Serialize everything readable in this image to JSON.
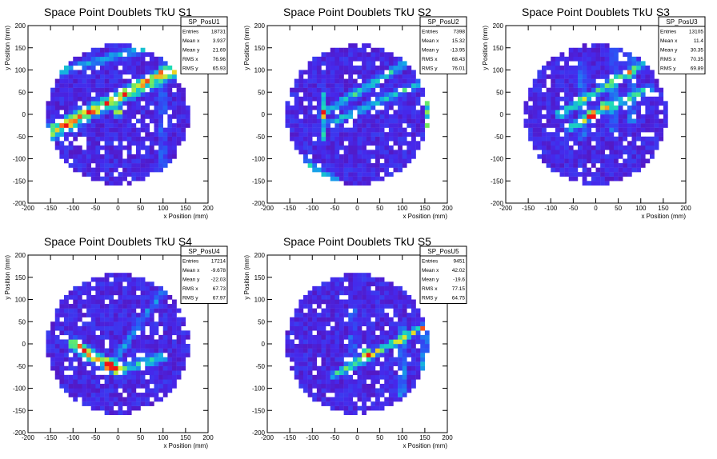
{
  "canvas": {
    "background": "#ffffff"
  },
  "chart_data": [
    {
      "type": "heatmap",
      "title": "Space Point Doublets TkU S1",
      "xlabel": "x Position (mm)",
      "ylabel": "y Position (mm)",
      "xlim": [
        -200,
        200
      ],
      "ylim": [
        -200,
        200
      ],
      "xticks": [
        -200,
        -150,
        -100,
        -50,
        0,
        50,
        100,
        150,
        200
      ],
      "yticks": [
        -200,
        -150,
        -100,
        -50,
        0,
        50,
        100,
        150,
        200
      ],
      "stats": {
        "name": "SP_PosU1",
        "rows": [
          {
            "label": "Entries",
            "value": "18731"
          },
          {
            "label": "Mean x",
            "value": "3.937"
          },
          {
            "label": "Mean y",
            "value": "21.69"
          },
          {
            "label": "RMS x",
            "value": "76.96"
          },
          {
            "label": "RMS y",
            "value": "65.93"
          }
        ]
      },
      "features": [
        {
          "kind": "line",
          "from": [
            -150,
            -40
          ],
          "to": [
            140,
            110
          ],
          "level": 0.95,
          "width": 22
        },
        {
          "kind": "line",
          "from": [
            -150,
            90
          ],
          "to": [
            60,
            150
          ],
          "level": 0.45,
          "width": 14
        },
        {
          "kind": "vline",
          "x": 100,
          "y0": -120,
          "y1": 140,
          "level": 0.35
        },
        {
          "kind": "spot",
          "at": [
            0,
            5
          ],
          "level": 1.0
        }
      ]
    },
    {
      "type": "heatmap",
      "title": "Space Point Doublets TkU S2",
      "xlabel": "x Position (mm)",
      "ylabel": "y Position (mm)",
      "xlim": [
        -200,
        200
      ],
      "ylim": [
        -200,
        200
      ],
      "xticks": [
        -200,
        -150,
        -100,
        -50,
        0,
        50,
        100,
        150,
        200
      ],
      "yticks": [
        -200,
        -150,
        -100,
        -50,
        0,
        50,
        100,
        150,
        200
      ],
      "stats": {
        "name": "SP_PosU2",
        "rows": [
          {
            "label": "Entries",
            "value": "7398"
          },
          {
            "label": "Mean x",
            "value": "15.32"
          },
          {
            "label": "Mean y",
            "value": "-13.95"
          },
          {
            "label": "RMS x",
            "value": "68.43"
          },
          {
            "label": "RMS y",
            "value": "76.01"
          }
        ]
      },
      "features": [
        {
          "kind": "line",
          "from": [
            -80,
            0
          ],
          "to": [
            100,
            110
          ],
          "level": 0.6,
          "width": 12
        },
        {
          "kind": "line",
          "from": [
            -60,
            -20
          ],
          "to": [
            160,
            80
          ],
          "level": 0.5,
          "width": 12
        },
        {
          "kind": "vline",
          "x": -75,
          "y0": -60,
          "y1": 50,
          "level": 0.55
        },
        {
          "kind": "vline",
          "x": 158,
          "y0": -40,
          "y1": 40,
          "level": 0.9
        },
        {
          "kind": "line",
          "from": [
            -130,
            -100
          ],
          "to": [
            -50,
            -150
          ],
          "level": 0.4,
          "width": 14
        }
      ]
    },
    {
      "type": "heatmap",
      "title": "Space Point Doublets TkU S3",
      "xlabel": "x Position (mm)",
      "ylabel": "y Position (mm)",
      "xlim": [
        -200,
        200
      ],
      "ylim": [
        -200,
        200
      ],
      "xticks": [
        -200,
        -150,
        -100,
        -50,
        0,
        50,
        100,
        150,
        200
      ],
      "yticks": [
        -200,
        -150,
        -100,
        -50,
        0,
        50,
        100,
        150,
        200
      ],
      "stats": {
        "name": "SP_PosU3",
        "rows": [
          {
            "label": "Entries",
            "value": "13105"
          },
          {
            "label": "Mean x",
            "value": "11.4"
          },
          {
            "label": "Mean y",
            "value": "30.35"
          },
          {
            "label": "RMS x",
            "value": "70.35"
          },
          {
            "label": "RMS y",
            "value": "69.89"
          }
        ]
      },
      "features": [
        {
          "kind": "line",
          "from": [
            -80,
            0
          ],
          "to": [
            100,
            110
          ],
          "level": 0.6,
          "width": 14
        },
        {
          "kind": "line",
          "from": [
            -60,
            -30
          ],
          "to": [
            120,
            60
          ],
          "level": 0.55,
          "width": 14
        },
        {
          "kind": "vline",
          "x": -30,
          "y0": -60,
          "y1": 120,
          "level": 0.45
        },
        {
          "kind": "vline",
          "x": 40,
          "y0": -40,
          "y1": 150,
          "level": 0.5
        },
        {
          "kind": "vline",
          "x": 80,
          "y0": -20,
          "y1": 150,
          "level": 0.5
        },
        {
          "kind": "spot",
          "at": [
            -10,
            0
          ],
          "level": 1.0
        },
        {
          "kind": "spot",
          "at": [
            20,
            20
          ],
          "level": 0.9
        }
      ]
    },
    {
      "type": "heatmap",
      "title": "Space Point Doublets TkU S4",
      "xlabel": "x Position (mm)",
      "ylabel": "y Position (mm)",
      "xlim": [
        -200,
        200
      ],
      "ylim": [
        -200,
        200
      ],
      "xticks": [
        -200,
        -150,
        -100,
        -50,
        0,
        50,
        100,
        150,
        200
      ],
      "yticks": [
        -200,
        -150,
        -100,
        -50,
        0,
        50,
        100,
        150,
        200
      ],
      "stats": {
        "name": "SP_PosU4",
        "rows": [
          {
            "label": "Entries",
            "value": "17214"
          },
          {
            "label": "Mean x",
            "value": "-9.678"
          },
          {
            "label": "Mean y",
            "value": "-22.03"
          },
          {
            "label": "RMS x",
            "value": "67.73"
          },
          {
            "label": "RMS y",
            "value": "67.97"
          }
        ]
      },
      "features": [
        {
          "kind": "line",
          "from": [
            -100,
            0
          ],
          "to": [
            0,
            -60
          ],
          "level": 0.9,
          "width": 18
        },
        {
          "kind": "line",
          "from": [
            0,
            -60
          ],
          "to": [
            100,
            -30
          ],
          "level": 0.55,
          "width": 16
        },
        {
          "kind": "line",
          "from": [
            -20,
            -55
          ],
          "to": [
            100,
            120
          ],
          "level": 0.35,
          "width": 12
        },
        {
          "kind": "spot",
          "at": [
            -20,
            -45
          ],
          "level": 1.0
        }
      ]
    },
    {
      "type": "heatmap",
      "title": "Space Point Doublets TkU S5",
      "xlabel": "x Position (mm)",
      "ylabel": "y Position (mm)",
      "xlim": [
        -200,
        200
      ],
      "ylim": [
        -200,
        200
      ],
      "xticks": [
        -200,
        -150,
        -100,
        -50,
        0,
        50,
        100,
        150,
        200
      ],
      "yticks": [
        -200,
        -150,
        -100,
        -50,
        0,
        50,
        100,
        150,
        200
      ],
      "stats": {
        "name": "SP_PosU5",
        "rows": [
          {
            "label": "Entries",
            "value": "9451"
          },
          {
            "label": "Mean x",
            "value": "42.02"
          },
          {
            "label": "Mean y",
            "value": "-19.6"
          },
          {
            "label": "RMS x",
            "value": "77.15"
          },
          {
            "label": "RMS y",
            "value": "64.75"
          }
        ]
      },
      "features": [
        {
          "kind": "line",
          "from": [
            -50,
            -70
          ],
          "to": [
            150,
            40
          ],
          "level": 0.75,
          "width": 12
        },
        {
          "kind": "vline",
          "x": 100,
          "y0": -120,
          "y1": 40,
          "level": 0.55
        },
        {
          "kind": "vline",
          "x": 150,
          "y0": -60,
          "y1": 40,
          "level": 0.7
        },
        {
          "kind": "vline",
          "x": -10,
          "y0": -60,
          "y1": 80,
          "level": 0.35
        },
        {
          "kind": "spot",
          "at": [
            20,
            -20
          ],
          "level": 1.0
        }
      ]
    }
  ]
}
